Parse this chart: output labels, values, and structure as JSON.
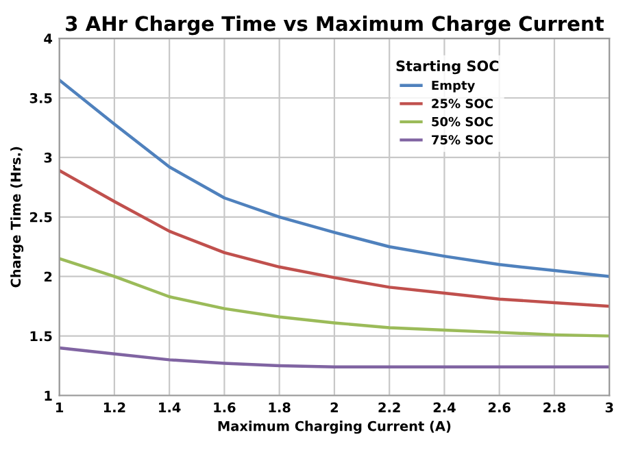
{
  "chart_data": {
    "type": "line",
    "title": "3 AHr Charge Time vs Maximum Charge Current",
    "xlabel": "Maximum Charging Current (A)",
    "ylabel": "Charge Time (Hrs.)",
    "legend_title": "Starting SOC",
    "x": [
      1,
      1.2,
      1.4,
      1.6,
      1.8,
      2,
      2.2,
      2.4,
      2.6,
      2.8,
      3
    ],
    "series": [
      {
        "name": "Empty",
        "color": "#4f81bd",
        "values": [
          3.65,
          3.28,
          2.92,
          2.66,
          2.5,
          2.37,
          2.25,
          2.17,
          2.1,
          2.05,
          2.0
        ]
      },
      {
        "name": "25% SOC",
        "color": "#c0504d",
        "values": [
          2.89,
          2.63,
          2.38,
          2.2,
          2.08,
          1.99,
          1.91,
          1.86,
          1.81,
          1.78,
          1.75
        ]
      },
      {
        "name": "50% SOC",
        "color": "#9bbb59",
        "values": [
          2.15,
          2.0,
          1.83,
          1.73,
          1.66,
          1.61,
          1.57,
          1.55,
          1.53,
          1.51,
          1.5
        ]
      },
      {
        "name": "75% SOC",
        "color": "#8064a2",
        "values": [
          1.4,
          1.35,
          1.3,
          1.27,
          1.25,
          1.24,
          1.24,
          1.24,
          1.24,
          1.24,
          1.24
        ]
      }
    ],
    "xlim": [
      1,
      3
    ],
    "xticks": [
      1,
      1.2,
      1.4,
      1.6,
      1.8,
      2,
      2.2,
      2.4,
      2.6,
      2.8,
      3
    ],
    "ylim": [
      1,
      4
    ],
    "yticks": [
      1,
      1.5,
      2,
      2.5,
      3,
      3.5,
      4
    ],
    "grid": true,
    "legend": "top right",
    "marker": "none",
    "line_style": "solid"
  }
}
